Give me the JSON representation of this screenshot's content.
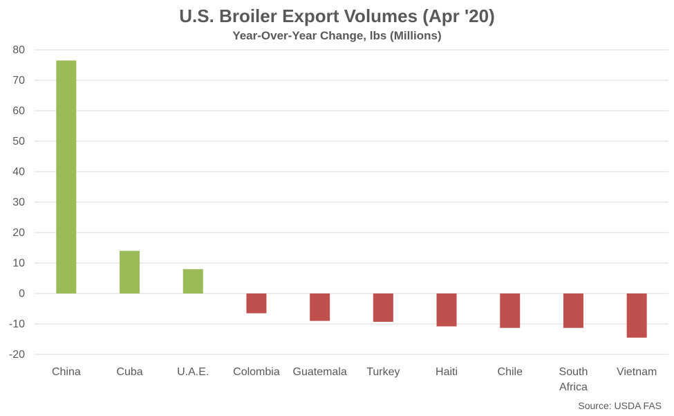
{
  "chart_data": {
    "type": "bar",
    "title": "U.S. Broiler Export Volumes (Apr '20)",
    "subtitle": "Year-Over-Year Change, lbs (Millions)",
    "source": "Source: USDA FAS",
    "categories": [
      "China",
      "Cuba",
      "U.A.E.",
      "Colombia",
      "Guatemala",
      "Turkey",
      "Haiti",
      "Chile",
      "South Africa",
      "Vietnam"
    ],
    "values": [
      76.5,
      14.0,
      8.0,
      -6.5,
      -9.0,
      -9.3,
      -10.8,
      -11.3,
      -11.3,
      -14.5
    ],
    "ylim": [
      -20,
      80
    ],
    "yticks": [
      -20,
      -10,
      0,
      10,
      20,
      30,
      40,
      50,
      60,
      70,
      80
    ],
    "grid": true,
    "colors": {
      "positive": "#9BBB59",
      "negative": "#C0504D",
      "grid": "#D9D9D9",
      "text": "#595959"
    }
  }
}
